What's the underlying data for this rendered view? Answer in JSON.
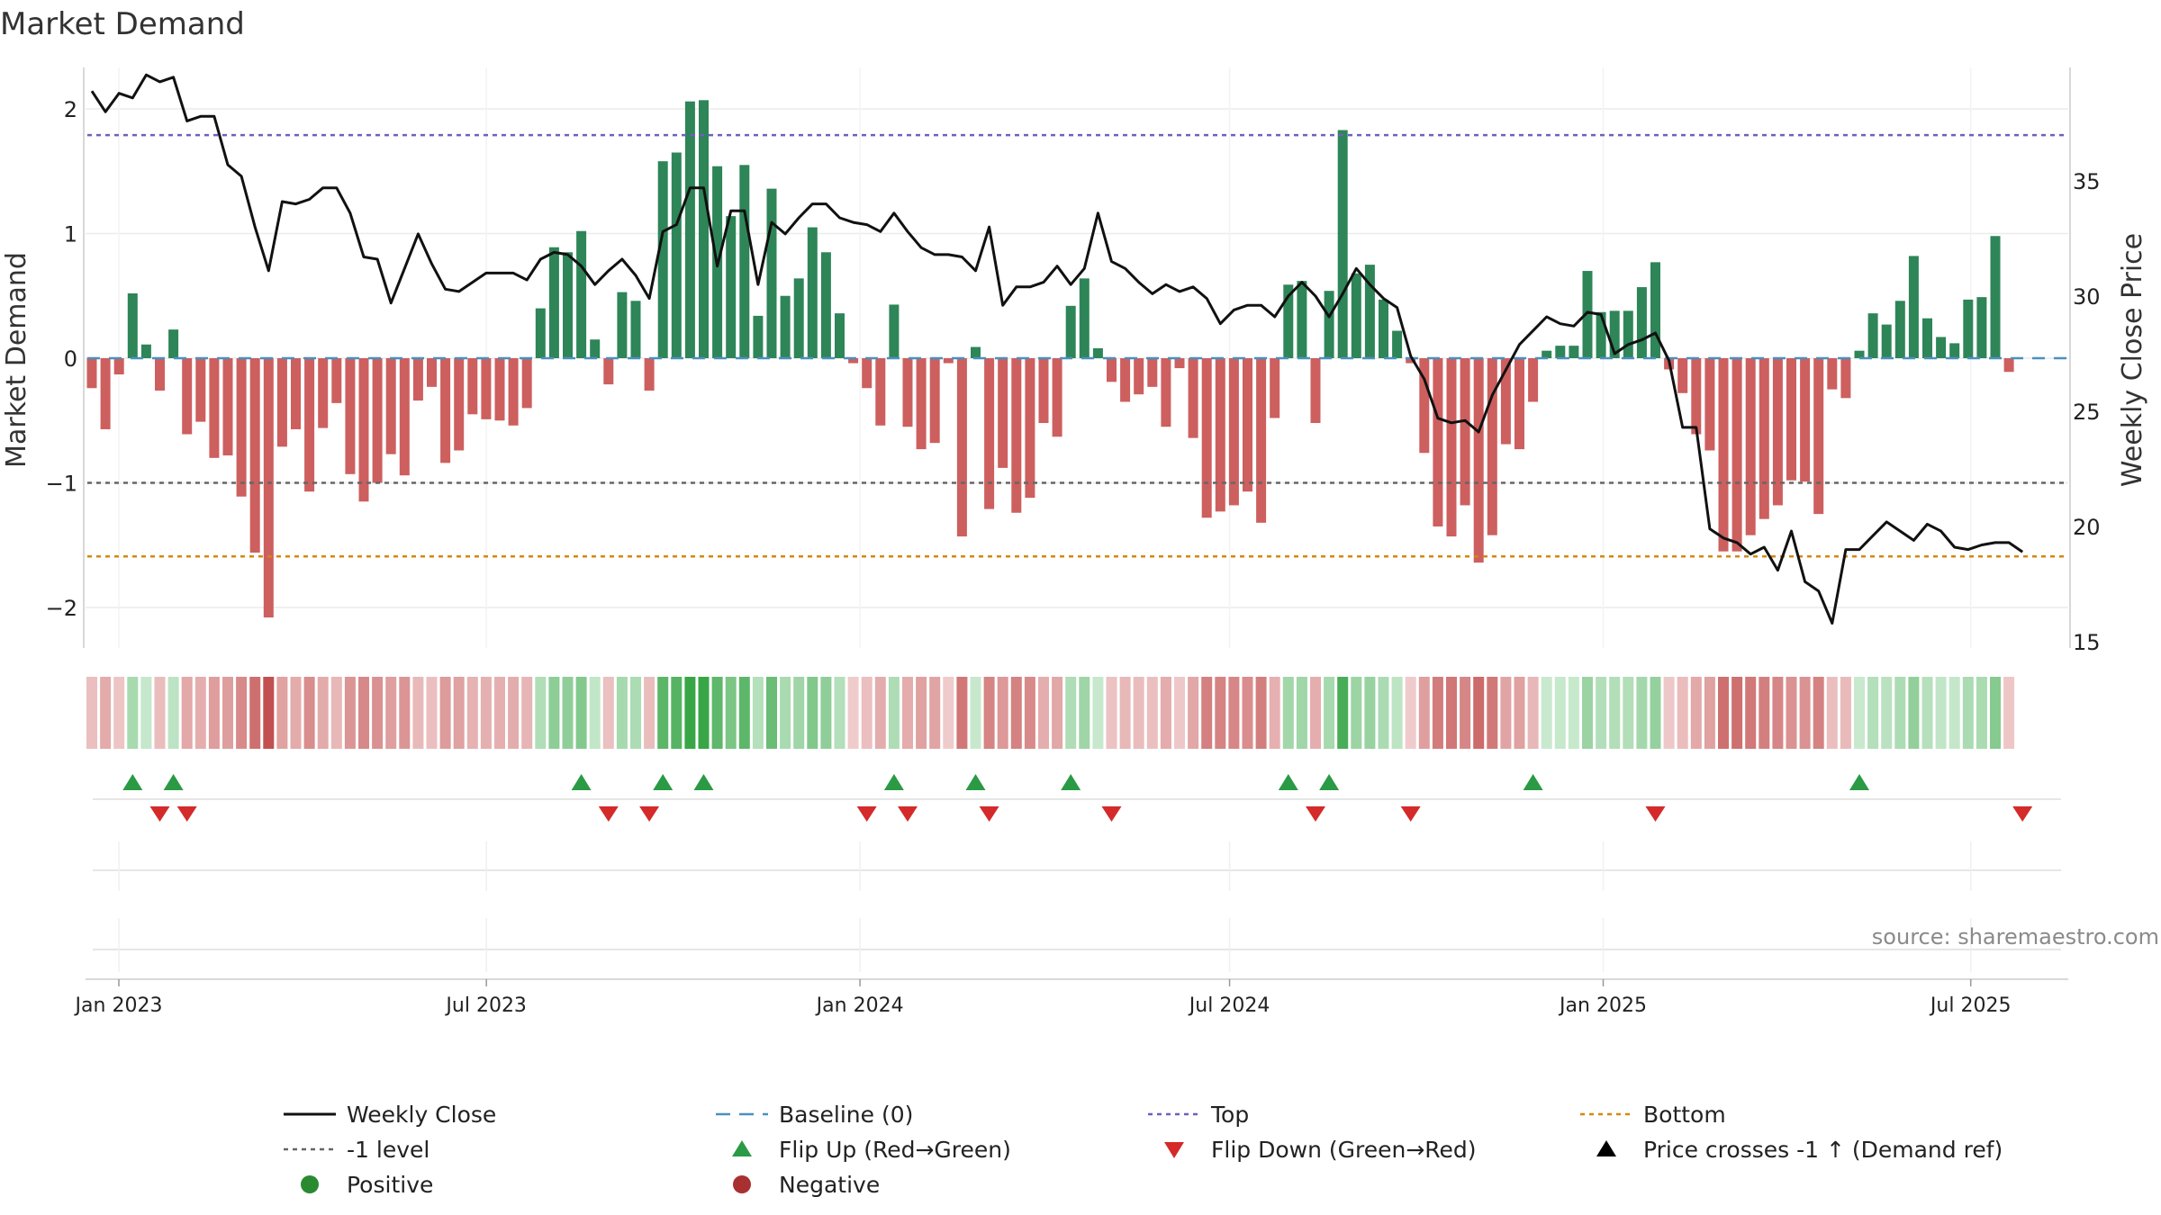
{
  "chart_data": {
    "type": "bar",
    "title": "Market Demand",
    "ylabel_left": "Market Demand",
    "ylabel_right": "Weekly Close Price",
    "left_ylim": [
      -2.35,
      2.35
    ],
    "left_ticks": [
      2,
      1,
      0,
      -1,
      -2
    ],
    "left_tick_labels": [
      "2",
      "1",
      "0",
      "−1",
      "−2"
    ],
    "right_ylim": [
      14.8,
      40.8
    ],
    "right_ticks": [
      35,
      30,
      25,
      20,
      15
    ],
    "right_tick_labels": [
      "35",
      "30",
      "25",
      "20",
      "15"
    ],
    "top_level": 1.79,
    "bottom_level": -1.59,
    "minus1_level": -1,
    "baseline_level": 0,
    "x_start": "2023-01-01",
    "x_end": "2025-08-30",
    "x_ticks": [
      "2023-01-01",
      "2023-07-01",
      "2024-01-01",
      "2024-07-01",
      "2025-01-01",
      "2025-07-01"
    ],
    "x_tick_labels": [
      "Jan 2023",
      "Jul 2023",
      "Jan 2024",
      "Jul 2024",
      "Jan 2025",
      "Jul 2025"
    ],
    "weeks": 142,
    "demand": [
      -0.24,
      -0.57,
      -0.13,
      0.52,
      0.11,
      -0.26,
      0.23,
      -0.61,
      -0.51,
      -0.8,
      -0.78,
      -1.11,
      -1.56,
      -2.08,
      -0.71,
      -0.57,
      -1.07,
      -0.56,
      -0.36,
      -0.93,
      -1.15,
      -1.0,
      -0.77,
      -0.94,
      -0.34,
      -0.23,
      -0.84,
      -0.74,
      -0.45,
      -0.49,
      -0.5,
      -0.54,
      -0.4,
      0.4,
      0.89,
      0.85,
      1.02,
      0.15,
      -0.21,
      0.53,
      0.46,
      -0.26,
      1.58,
      1.65,
      2.06,
      2.07,
      1.54,
      1.14,
      1.55,
      0.34,
      1.36,
      0.5,
      0.64,
      1.05,
      0.85,
      0.36,
      -0.04,
      -0.24,
      -0.54,
      0.43,
      -0.55,
      -0.73,
      -0.68,
      -0.04,
      -1.43,
      0.09,
      -1.21,
      -0.88,
      -1.24,
      -1.12,
      -0.52,
      -0.63,
      0.42,
      0.64,
      0.08,
      -0.19,
      -0.35,
      -0.29,
      -0.23,
      -0.55,
      -0.08,
      -0.64,
      -1.28,
      -1.23,
      -1.18,
      -1.07,
      -1.32,
      -0.48,
      0.59,
      0.62,
      -0.52,
      0.54,
      1.83,
      0.68,
      0.75,
      0.47,
      0.22,
      -0.04,
      -0.76,
      -1.35,
      -1.43,
      -1.18,
      -1.64,
      -1.42,
      -0.69,
      -0.73,
      -0.35,
      0.06,
      0.1,
      0.1,
      0.7,
      0.37,
      0.38,
      0.38,
      0.57,
      0.77,
      -0.09,
      -0.28,
      -0.61,
      -0.74,
      -1.55,
      -1.55,
      -1.42,
      -1.29,
      -1.18,
      -0.98,
      -0.99,
      -1.25,
      -0.25,
      -0.32,
      0.06,
      0.36,
      0.27,
      0.46,
      0.82,
      0.32,
      0.17,
      0.12,
      0.47,
      0.49,
      0.98,
      -0.11
    ],
    "weekly_close": [
      38.9,
      38.0,
      38.8,
      38.6,
      39.6,
      39.3,
      39.5,
      37.6,
      37.8,
      37.8,
      35.7,
      35.2,
      33.0,
      31.1,
      34.1,
      34.0,
      34.2,
      34.7,
      34.7,
      33.6,
      31.7,
      31.6,
      29.7,
      31.2,
      32.7,
      31.4,
      30.3,
      30.2,
      30.6,
      31.0,
      31.0,
      31.0,
      30.7,
      31.6,
      31.9,
      31.8,
      31.3,
      30.5,
      31.1,
      31.6,
      30.9,
      29.9,
      32.8,
      33.1,
      34.7,
      34.7,
      31.3,
      33.7,
      33.7,
      30.5,
      33.2,
      32.7,
      33.4,
      34.0,
      34.0,
      33.4,
      33.2,
      33.1,
      32.8,
      33.6,
      32.8,
      32.1,
      31.8,
      31.8,
      31.7,
      31.1,
      33.0,
      29.6,
      30.4,
      30.4,
      30.6,
      31.3,
      30.5,
      31.2,
      33.6,
      31.5,
      31.2,
      30.6,
      30.1,
      30.5,
      30.2,
      30.4,
      29.9,
      28.8,
      29.4,
      29.6,
      29.6,
      29.1,
      30.0,
      30.6,
      30.0,
      29.1,
      30.1,
      31.2,
      30.5,
      29.9,
      29.5,
      27.4,
      26.4,
      24.7,
      24.5,
      24.6,
      24.1,
      25.7,
      26.8,
      27.9,
      28.5,
      29.1,
      28.8,
      28.7,
      29.3,
      29.2,
      27.5,
      27.9,
      28.1,
      28.4,
      27.2,
      24.3,
      24.3,
      19.9,
      19.5,
      19.3,
      18.8,
      19.1,
      18.1,
      19.8,
      17.6,
      17.2,
      15.8,
      19.0,
      19.0,
      19.6,
      20.2,
      19.8,
      19.4,
      20.1,
      19.8,
      19.1,
      19.0,
      19.2,
      19.3,
      19.3,
      18.9
    ],
    "strength_strip": "16-level demand intensity color strip, one cell per week",
    "flip_up_weeks": [
      3,
      6,
      36,
      42,
      45,
      59,
      65,
      72,
      88,
      91,
      106,
      130
    ],
    "flip_down_weeks": [
      5,
      7,
      38,
      41,
      57,
      60,
      66,
      75,
      90,
      97,
      115,
      142
    ],
    "price_crosses_weeks": [],
    "legend": [
      {
        "label": "Weekly Close",
        "marker": "solid-line",
        "color": "#111111"
      },
      {
        "label": "Baseline (0)",
        "marker": "dashed-line",
        "color": "#4a90c0"
      },
      {
        "label": "Top",
        "marker": "dotted-line",
        "color": "#6f5fbf"
      },
      {
        "label": "Bottom",
        "marker": "dotted-line",
        "color": "#d4880d"
      },
      {
        "label": "-1 level",
        "marker": "dotted-line",
        "color": "#666666"
      },
      {
        "label": "Flip Up (Red→Green)",
        "marker": "triangle-up",
        "color": "#2a9a45"
      },
      {
        "label": "Flip Down (Green→Red)",
        "marker": "triangle-down",
        "color": "#d42a2a"
      },
      {
        "label": "Price crosses -1 ↑ (Demand ref)",
        "marker": "triangle-up",
        "color": "#000000"
      },
      {
        "label": "Positive",
        "marker": "circle",
        "color": "#2a8a30"
      },
      {
        "label": "Negative",
        "marker": "circle",
        "color": "#a83030"
      }
    ],
    "source": "source: sharemaestro.com"
  },
  "colors": {
    "positive_bar": "#2e8558",
    "negative_bar": "#cd5f5f",
    "grid": "#ececec",
    "axis": "#cccccc"
  }
}
